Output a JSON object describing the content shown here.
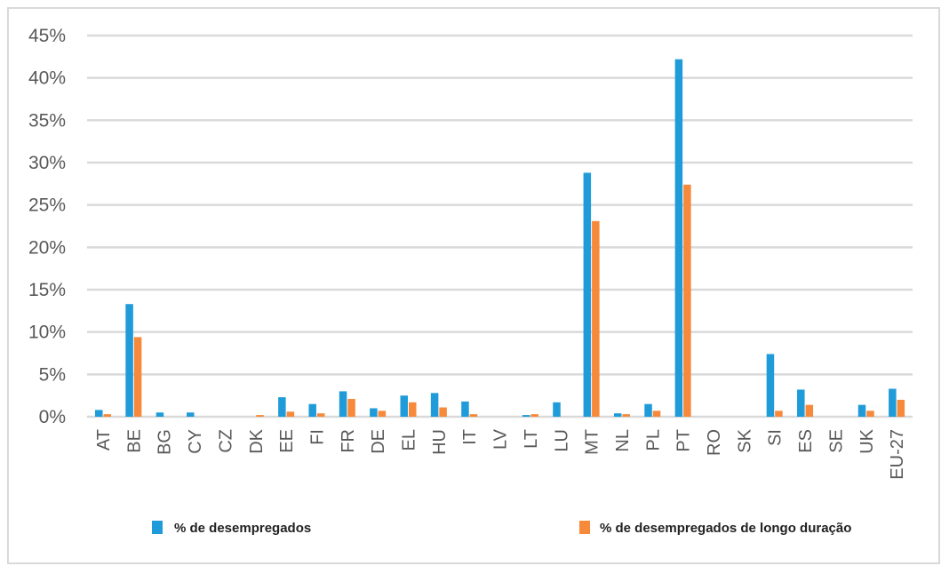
{
  "chart_data": {
    "type": "bar",
    "title": "",
    "xlabel": "",
    "ylabel": "",
    "ylim": [
      0,
      45
    ],
    "y_tick_values": [
      0,
      5,
      10,
      15,
      20,
      25,
      30,
      35,
      40,
      45
    ],
    "y_tick_labels": [
      "0%",
      "5%",
      "10%",
      "15%",
      "20%",
      "25%",
      "30%",
      "35%",
      "40%",
      "45%"
    ],
    "grid": true,
    "legend_placement": "bottom",
    "categories": [
      "AT",
      "BE",
      "BG",
      "CY",
      "CZ",
      "DK",
      "EE",
      "FI",
      "FR",
      "DE",
      "EL",
      "HU",
      "IT",
      "LV",
      "LT",
      "LU",
      "MT",
      "NL",
      "PL",
      "PT",
      "RO",
      "SK",
      "SI",
      "ES",
      "SE",
      "UK",
      "EU-27"
    ],
    "series": [
      {
        "name": "% de desempregados",
        "color": "#1f9bd9",
        "values": [
          0.8,
          13.3,
          0.5,
          0.5,
          0.0,
          0.0,
          2.3,
          1.5,
          3.0,
          1.0,
          2.5,
          2.8,
          1.8,
          0.0,
          0.2,
          1.7,
          28.8,
          0.4,
          1.5,
          42.2,
          0.0,
          0.0,
          7.4,
          3.2,
          0.0,
          1.4,
          3.3
        ]
      },
      {
        "name": "% de desempregados  de longo duração",
        "color": "#f7893a",
        "values": [
          0.3,
          9.4,
          0.0,
          0.0,
          0.0,
          0.2,
          0.6,
          0.4,
          2.1,
          0.7,
          1.7,
          1.1,
          0.3,
          0.0,
          0.3,
          0.0,
          23.1,
          0.3,
          0.7,
          27.4,
          0.0,
          0.0,
          0.7,
          1.4,
          0.0,
          0.7,
          2.0
        ]
      }
    ]
  },
  "colors": {
    "grid": "#d9d9d9",
    "frame": "#d9d9d9",
    "tick_text": "#595959"
  }
}
